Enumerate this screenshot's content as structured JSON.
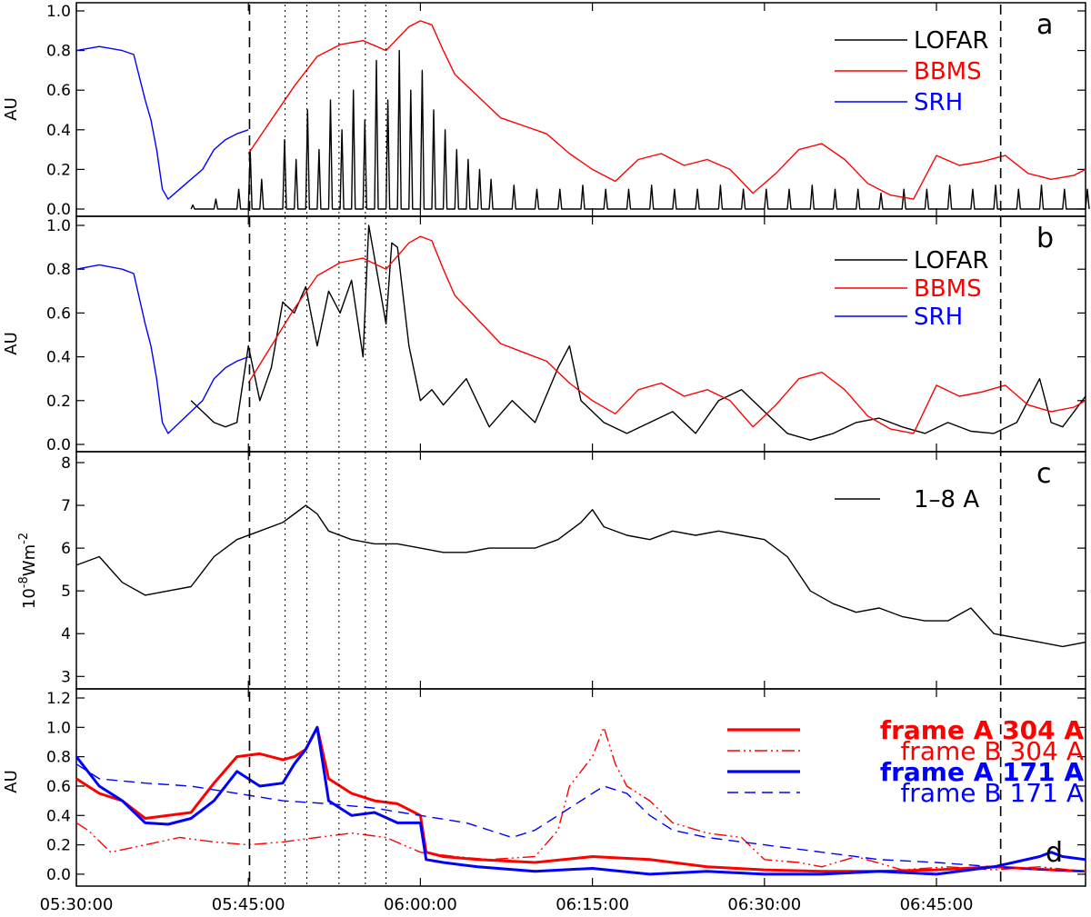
{
  "chart_data": [
    {
      "panel": "a",
      "type": "line",
      "panel_label": "a",
      "ylabel": "AU",
      "ylim": [
        0,
        1.0
      ],
      "yticks": [
        "0.0",
        "0.2",
        "0.4",
        "0.6",
        "0.8",
        "1.0"
      ],
      "xlim_minutes": [
        0,
        88
      ],
      "legend": "top-right",
      "series": [
        {
          "name": "LOFAR",
          "color": "#000000",
          "kind": "spiky",
          "x": [
            10,
            12,
            14,
            15,
            16,
            18,
            19,
            20,
            21,
            22,
            23,
            24,
            25,
            26,
            27,
            28,
            29,
            30,
            31,
            32,
            33,
            34,
            35,
            36,
            38,
            40,
            42,
            44,
            46,
            48,
            50,
            52,
            54,
            56,
            58,
            60,
            62,
            64,
            66,
            68,
            70,
            72,
            74,
            76,
            78,
            80,
            82,
            84,
            86,
            88
          ],
          "y": [
            0.02,
            0.05,
            0.1,
            0.3,
            0.15,
            0.35,
            0.25,
            0.5,
            0.3,
            0.55,
            0.4,
            0.6,
            0.45,
            0.75,
            0.55,
            0.8,
            0.6,
            0.7,
            0.5,
            0.4,
            0.3,
            0.25,
            0.2,
            0.15,
            0.12,
            0.1,
            0.1,
            0.12,
            0.1,
            0.1,
            0.12,
            0.1,
            0.1,
            0.12,
            0.1,
            0.1,
            0.1,
            0.12,
            0.1,
            0.1,
            0.08,
            0.1,
            0.1,
            0.12,
            0.1,
            0.12,
            0.1,
            0.12,
            0.1,
            0.1
          ]
        },
        {
          "name": "BBMS",
          "color": "#ff0000",
          "x": [
            15,
            17,
            19,
            21,
            23,
            25,
            27,
            28,
            29,
            30,
            31,
            32,
            33,
            35,
            37,
            39,
            41,
            43,
            45,
            47,
            49,
            51,
            53,
            55,
            57,
            59,
            61,
            63,
            65,
            67,
            69,
            71,
            73,
            75,
            77,
            79,
            81,
            83,
            85,
            87,
            88
          ],
          "y": [
            0.28,
            0.45,
            0.62,
            0.77,
            0.83,
            0.85,
            0.8,
            0.86,
            0.92,
            0.95,
            0.93,
            0.8,
            0.68,
            0.57,
            0.46,
            0.42,
            0.38,
            0.28,
            0.2,
            0.14,
            0.25,
            0.28,
            0.22,
            0.25,
            0.2,
            0.08,
            0.18,
            0.3,
            0.33,
            0.25,
            0.13,
            0.07,
            0.05,
            0.27,
            0.22,
            0.24,
            0.27,
            0.18,
            0.15,
            0.17,
            0.2
          ]
        },
        {
          "name": "SRH",
          "color": "#0000ff",
          "x": [
            0,
            2,
            4,
            5,
            6,
            6.5,
            7,
            7.5,
            8,
            9,
            10,
            11,
            12,
            13,
            14,
            15
          ],
          "y": [
            0.8,
            0.82,
            0.8,
            0.78,
            0.55,
            0.45,
            0.3,
            0.1,
            0.05,
            0.1,
            0.15,
            0.2,
            0.3,
            0.35,
            0.38,
            0.4
          ]
        }
      ]
    },
    {
      "panel": "b",
      "type": "line",
      "panel_label": "b",
      "ylabel": "AU",
      "ylim": [
        0,
        1.0
      ],
      "yticks": [
        "0.0",
        "0.2",
        "0.4",
        "0.6",
        "0.8",
        "1.0"
      ],
      "xlim_minutes": [
        0,
        88
      ],
      "legend": "top-right",
      "series": [
        {
          "name": "LOFAR",
          "color": "#000000",
          "x": [
            10,
            11,
            12,
            13,
            14,
            15,
            16,
            17,
            18,
            19,
            20,
            21,
            22,
            23,
            24,
            25,
            25.5,
            26,
            27,
            27.5,
            28,
            29,
            30,
            31,
            32,
            34,
            36,
            38,
            40,
            42,
            43,
            44,
            46,
            48,
            50,
            52,
            54,
            56,
            58,
            60,
            62,
            64,
            66,
            68,
            70,
            72,
            74,
            76,
            78,
            80,
            82,
            84,
            85,
            86,
            87,
            88
          ],
          "y": [
            0.2,
            0.15,
            0.1,
            0.08,
            0.1,
            0.45,
            0.2,
            0.35,
            0.65,
            0.6,
            0.72,
            0.45,
            0.7,
            0.6,
            0.75,
            0.4,
            1.0,
            0.85,
            0.55,
            0.92,
            0.9,
            0.45,
            0.2,
            0.25,
            0.18,
            0.3,
            0.08,
            0.2,
            0.1,
            0.35,
            0.45,
            0.2,
            0.1,
            0.05,
            0.1,
            0.15,
            0.05,
            0.2,
            0.25,
            0.15,
            0.05,
            0.02,
            0.05,
            0.1,
            0.12,
            0.08,
            0.05,
            0.1,
            0.06,
            0.05,
            0.1,
            0.3,
            0.1,
            0.08,
            0.15,
            0.22
          ]
        },
        {
          "name": "BBMS",
          "color": "#ff0000",
          "x": [
            15,
            17,
            19,
            21,
            23,
            25,
            27,
            28,
            29,
            30,
            31,
            32,
            33,
            35,
            37,
            39,
            41,
            43,
            45,
            47,
            49,
            51,
            53,
            55,
            57,
            59,
            61,
            63,
            65,
            67,
            69,
            71,
            73,
            75,
            77,
            79,
            81,
            83,
            85,
            87,
            88
          ],
          "y": [
            0.28,
            0.45,
            0.62,
            0.77,
            0.83,
            0.85,
            0.8,
            0.86,
            0.92,
            0.95,
            0.93,
            0.8,
            0.68,
            0.57,
            0.46,
            0.42,
            0.38,
            0.28,
            0.2,
            0.14,
            0.25,
            0.28,
            0.22,
            0.25,
            0.2,
            0.08,
            0.18,
            0.3,
            0.33,
            0.25,
            0.13,
            0.07,
            0.05,
            0.27,
            0.22,
            0.24,
            0.27,
            0.18,
            0.15,
            0.17,
            0.2
          ]
        },
        {
          "name": "SRH",
          "color": "#0000ff",
          "x": [
            0,
            2,
            4,
            5,
            6,
            6.5,
            7,
            7.5,
            8,
            9,
            10,
            11,
            12,
            13,
            14,
            15
          ],
          "y": [
            0.8,
            0.82,
            0.8,
            0.78,
            0.55,
            0.45,
            0.3,
            0.1,
            0.05,
            0.1,
            0.15,
            0.2,
            0.3,
            0.35,
            0.38,
            0.4
          ]
        }
      ]
    },
    {
      "panel": "c",
      "type": "line",
      "panel_label": "c",
      "ylabel_parts": [
        "10",
        "-8",
        "Wm",
        "-2"
      ],
      "ylim": [
        2.9,
        8.0
      ],
      "yticks": [
        "3",
        "4",
        "5",
        "6",
        "7",
        "8"
      ],
      "xlim_minutes": [
        0,
        88
      ],
      "legend": "top-right",
      "series": [
        {
          "name": "1–8 A",
          "color": "#000000",
          "x": [
            0,
            2,
            4,
            6,
            8,
            10,
            12,
            14,
            16,
            18,
            19,
            20,
            21,
            22,
            24,
            26,
            28,
            30,
            32,
            34,
            36,
            38,
            40,
            42,
            44,
            45,
            46,
            48,
            50,
            52,
            54,
            56,
            58,
            60,
            62,
            64,
            66,
            68,
            70,
            72,
            74,
            76,
            78,
            80,
            82,
            84,
            86,
            88
          ],
          "y": [
            5.6,
            5.8,
            5.2,
            4.9,
            5.0,
            5.1,
            5.8,
            6.2,
            6.4,
            6.6,
            6.8,
            7.0,
            6.8,
            6.4,
            6.2,
            6.1,
            6.1,
            6.0,
            5.9,
            5.9,
            6.0,
            6.0,
            6.0,
            6.2,
            6.6,
            6.9,
            6.5,
            6.3,
            6.2,
            6.4,
            6.3,
            6.4,
            6.3,
            6.2,
            5.8,
            5.0,
            4.7,
            4.5,
            4.6,
            4.4,
            4.3,
            4.3,
            4.6,
            4.0,
            3.9,
            3.8,
            3.7,
            3.8
          ]
        }
      ]
    },
    {
      "panel": "d",
      "type": "line",
      "panel_label": "d",
      "ylabel": "AU",
      "ylim": [
        -0.05,
        1.2
      ],
      "yticks": [
        "0.0",
        "0.2",
        "0.4",
        "0.6",
        "0.8",
        "1.0",
        "1.2"
      ],
      "xlim_minutes": [
        0,
        88
      ],
      "legend": "top-right",
      "series": [
        {
          "name": "frame A 304 A",
          "color": "#ff0000",
          "style": "thick",
          "x": [
            0,
            2,
            4,
            6,
            8,
            10,
            12,
            14,
            16,
            18,
            19,
            20,
            21,
            22,
            24,
            26,
            28,
            30,
            30.5,
            32,
            35,
            40,
            45,
            50,
            55,
            60,
            65,
            70,
            75,
            80,
            85,
            88
          ],
          "y": [
            0.65,
            0.55,
            0.5,
            0.38,
            0.4,
            0.42,
            0.62,
            0.8,
            0.82,
            0.78,
            0.8,
            0.85,
            1.0,
            0.65,
            0.55,
            0.5,
            0.48,
            0.4,
            0.15,
            0.12,
            0.1,
            0.08,
            0.12,
            0.1,
            0.05,
            0.03,
            0.02,
            0.02,
            0.03,
            0.05,
            0.03,
            0.02
          ]
        },
        {
          "name": "frame B 304 A",
          "color": "#ff0000",
          "style": "dash-dot-dot",
          "x": [
            0,
            1,
            3,
            6,
            9,
            12,
            15,
            18,
            21,
            24,
            27,
            30,
            33,
            36,
            40,
            42,
            43,
            44,
            45,
            46,
            47,
            48,
            50,
            52,
            55,
            58,
            60,
            63,
            65,
            68,
            72,
            76,
            80,
            84,
            88
          ],
          "y": [
            0.35,
            0.3,
            0.15,
            0.2,
            0.25,
            0.22,
            0.2,
            0.22,
            0.25,
            0.28,
            0.25,
            0.15,
            0.12,
            0.1,
            0.12,
            0.3,
            0.6,
            0.7,
            0.8,
            1.0,
            0.75,
            0.6,
            0.5,
            0.35,
            0.28,
            0.25,
            0.1,
            0.08,
            0.05,
            0.12,
            0.03,
            0.05,
            0.03,
            0.05,
            0.02
          ]
        },
        {
          "name": "frame A 171 A",
          "color": "#0000ff",
          "style": "thick",
          "x": [
            0,
            2,
            4,
            6,
            8,
            10,
            12,
            14,
            16,
            18,
            19,
            20,
            21,
            22,
            24,
            26,
            28,
            30,
            30.5,
            32,
            35,
            40,
            45,
            50,
            55,
            60,
            65,
            70,
            75,
            80,
            84,
            85,
            86,
            88
          ],
          "y": [
            0.8,
            0.6,
            0.5,
            0.35,
            0.34,
            0.38,
            0.5,
            0.7,
            0.6,
            0.62,
            0.75,
            0.85,
            1.0,
            0.5,
            0.4,
            0.42,
            0.35,
            0.35,
            0.1,
            0.08,
            0.05,
            0.02,
            0.04,
            0.0,
            0.02,
            0.0,
            0.0,
            0.02,
            0.0,
            0.05,
            0.12,
            0.15,
            0.12,
            0.1
          ]
        },
        {
          "name": "frame B 171 A",
          "color": "#0000ff",
          "style": "dashed",
          "x": [
            0,
            2,
            6,
            10,
            14,
            18,
            22,
            26,
            30,
            34,
            38,
            40,
            42,
            44,
            46,
            48,
            50,
            52,
            55,
            60,
            65,
            70,
            75,
            80,
            84,
            88
          ],
          "y": [
            0.75,
            0.65,
            0.62,
            0.6,
            0.55,
            0.5,
            0.48,
            0.45,
            0.4,
            0.35,
            0.25,
            0.3,
            0.4,
            0.5,
            0.6,
            0.55,
            0.4,
            0.3,
            0.25,
            0.2,
            0.15,
            0.1,
            0.08,
            0.05,
            0.03,
            0.02
          ]
        }
      ]
    }
  ],
  "x_axis": {
    "ticks": [
      {
        "minute": 0,
        "label": "05:30:00"
      },
      {
        "minute": 15,
        "label": "05:45:00"
      },
      {
        "minute": 30,
        "label": "06:00:00"
      },
      {
        "minute": 45,
        "label": "06:15:00"
      },
      {
        "minute": 60,
        "label": "06:30:00"
      },
      {
        "minute": 75,
        "label": "06:45:00"
      }
    ]
  },
  "vertical_lines": {
    "dashed_minutes": [
      15.1,
      80.6
    ],
    "dotted_minutes": [
      18.2,
      20.1,
      22.9,
      25.2,
      27.0
    ]
  }
}
